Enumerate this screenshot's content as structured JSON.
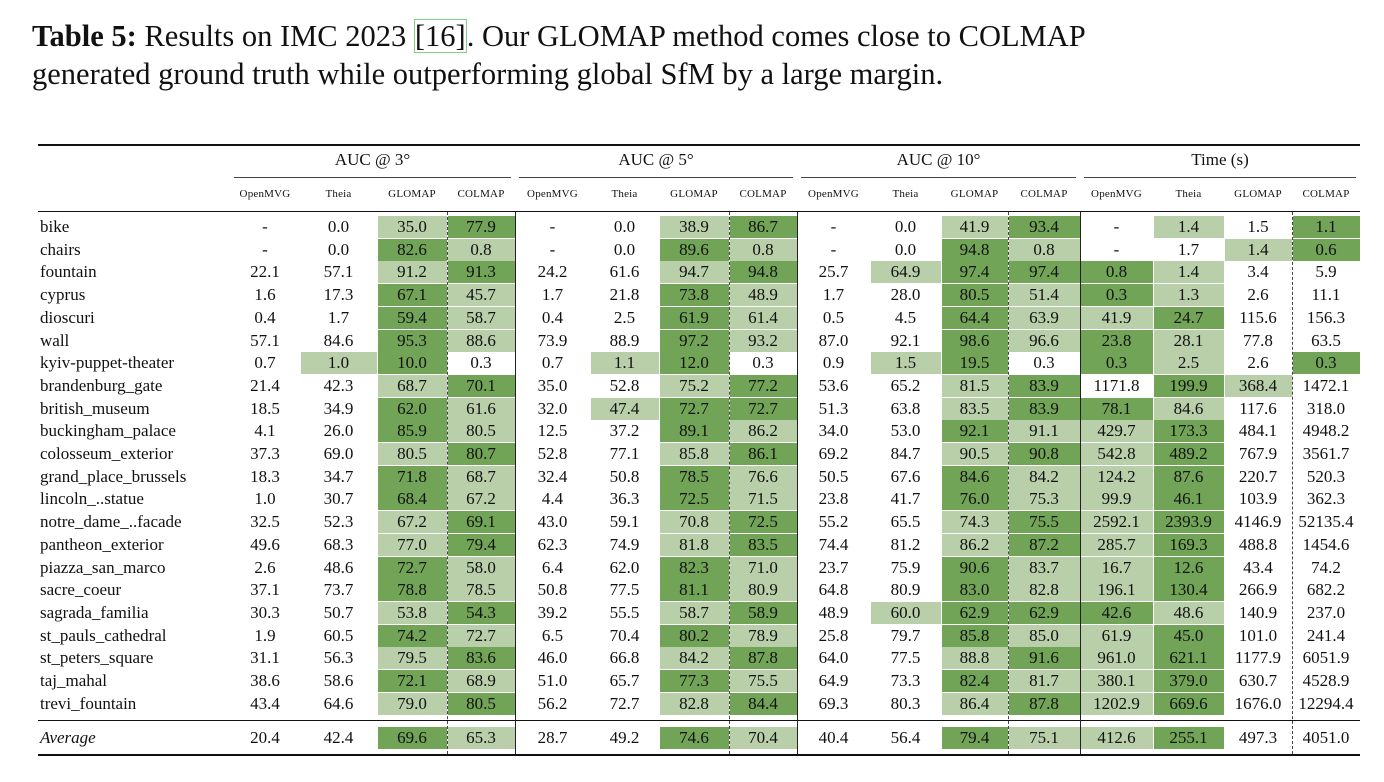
{
  "caption": {
    "label": "Table 5:",
    "line1_before": " Results on IMC 2023 ",
    "cite_open": "[",
    "cite": "16",
    "cite_close": "]",
    "line1_after": ". Our GLOMAP method comes close to COLMAP",
    "line2": "generated ground truth while outperforming global SfM by a large margin."
  },
  "colors": {
    "best": "#72a457",
    "second": "#b9cfaa"
  },
  "highlight_legend": {
    "2": "best",
    "1": "second",
    "0": "none"
  },
  "groups": [
    "AUC @ 3°",
    "AUC @ 5°",
    "AUC @ 10°",
    "Time (s)"
  ],
  "methods": [
    "OpenMVG",
    "Theia",
    "GLOMAP",
    "COLMAP"
  ],
  "rows": [
    {
      "name": "bike",
      "values": [
        "-",
        "0.0",
        "35.0",
        "77.9",
        "-",
        "0.0",
        "38.9",
        "86.7",
        "-",
        "0.0",
        "41.9",
        "93.4",
        "-",
        "1.4",
        "1.5",
        "1.1"
      ],
      "highlight": "0012001200120102"
    },
    {
      "name": "chairs",
      "values": [
        "-",
        "0.0",
        "82.6",
        "0.8",
        "-",
        "0.0",
        "89.6",
        "0.8",
        "-",
        "0.0",
        "94.8",
        "0.8",
        "-",
        "1.7",
        "1.4",
        "0.6"
      ],
      "highlight": "0021002100210012"
    },
    {
      "name": "fountain",
      "values": [
        "22.1",
        "57.1",
        "91.2",
        "91.3",
        "24.2",
        "61.6",
        "94.7",
        "94.8",
        "25.7",
        "64.9",
        "97.4",
        "97.4",
        "0.8",
        "1.4",
        "3.4",
        "5.9"
      ],
      "highlight": "0012001201222100"
    },
    {
      "name": "cyprus",
      "values": [
        "1.6",
        "17.3",
        "67.1",
        "45.7",
        "1.7",
        "21.8",
        "73.8",
        "48.9",
        "1.7",
        "28.0",
        "80.5",
        "51.4",
        "0.3",
        "1.3",
        "2.6",
        "11.1"
      ],
      "highlight": "0021002100212100"
    },
    {
      "name": "dioscuri",
      "values": [
        "0.4",
        "1.7",
        "59.4",
        "58.7",
        "0.4",
        "2.5",
        "61.9",
        "61.4",
        "0.5",
        "4.5",
        "64.4",
        "63.9",
        "41.9",
        "24.7",
        "115.6",
        "156.3"
      ],
      "highlight": "0021002100211200"
    },
    {
      "name": "wall",
      "values": [
        "57.1",
        "84.6",
        "95.3",
        "88.6",
        "73.9",
        "88.9",
        "97.2",
        "93.2",
        "87.0",
        "92.1",
        "98.6",
        "96.6",
        "23.8",
        "28.1",
        "77.8",
        "63.5"
      ],
      "highlight": "0021002100212100"
    },
    {
      "name": "kyiv-puppet-theater",
      "values": [
        "0.7",
        "1.0",
        "10.0",
        "0.3",
        "0.7",
        "1.1",
        "12.0",
        "0.3",
        "0.9",
        "1.5",
        "19.5",
        "0.3",
        "0.3",
        "2.5",
        "2.6",
        "0.3"
      ],
      "highlight": "0120012001202102"
    },
    {
      "name": "brandenburg_gate",
      "values": [
        "21.4",
        "42.3",
        "68.7",
        "70.1",
        "35.0",
        "52.8",
        "75.2",
        "77.2",
        "53.6",
        "65.2",
        "81.5",
        "83.9",
        "1171.8",
        "199.9",
        "368.4",
        "1472.1"
      ],
      "highlight": "0012001200120210"
    },
    {
      "name": "british_museum",
      "values": [
        "18.5",
        "34.9",
        "62.0",
        "61.6",
        "32.0",
        "47.4",
        "72.7",
        "72.7",
        "51.3",
        "63.8",
        "83.5",
        "83.9",
        "78.1",
        "84.6",
        "117.6",
        "318.0"
      ],
      "highlight": "0021012200122100"
    },
    {
      "name": "buckingham_palace",
      "values": [
        "4.1",
        "26.0",
        "85.9",
        "80.5",
        "12.5",
        "37.2",
        "89.1",
        "86.2",
        "34.0",
        "53.0",
        "92.1",
        "91.1",
        "429.7",
        "173.3",
        "484.1",
        "4948.2"
      ],
      "highlight": "0021002100211200"
    },
    {
      "name": "colosseum_exterior",
      "values": [
        "37.3",
        "69.0",
        "80.5",
        "80.7",
        "52.8",
        "77.1",
        "85.8",
        "86.1",
        "69.2",
        "84.7",
        "90.5",
        "90.8",
        "542.8",
        "489.2",
        "767.9",
        "3561.7"
      ],
      "highlight": "0012001200121200"
    },
    {
      "name": "grand_place_brussels",
      "values": [
        "18.3",
        "34.7",
        "71.8",
        "68.7",
        "32.4",
        "50.8",
        "78.5",
        "76.6",
        "50.5",
        "67.6",
        "84.6",
        "84.2",
        "124.2",
        "87.6",
        "220.7",
        "520.3"
      ],
      "highlight": "0021002100211200"
    },
    {
      "name": "lincoln_..statue",
      "values": [
        "1.0",
        "30.7",
        "68.4",
        "67.2",
        "4.4",
        "36.3",
        "72.5",
        "71.5",
        "23.8",
        "41.7",
        "76.0",
        "75.3",
        "99.9",
        "46.1",
        "103.9",
        "362.3"
      ],
      "highlight": "0021002100211200"
    },
    {
      "name": "notre_dame_..facade",
      "values": [
        "32.5",
        "52.3",
        "67.2",
        "69.1",
        "43.0",
        "59.1",
        "70.8",
        "72.5",
        "55.2",
        "65.5",
        "74.3",
        "75.5",
        "2592.1",
        "2393.9",
        "4146.9",
        "52135.4"
      ],
      "highlight": "0012001200121200"
    },
    {
      "name": "pantheon_exterior",
      "values": [
        "49.6",
        "68.3",
        "77.0",
        "79.4",
        "62.3",
        "74.9",
        "81.8",
        "83.5",
        "74.4",
        "81.2",
        "86.2",
        "87.2",
        "285.7",
        "169.3",
        "488.8",
        "1454.6"
      ],
      "highlight": "0012001200121200"
    },
    {
      "name": "piazza_san_marco",
      "values": [
        "2.6",
        "48.6",
        "72.7",
        "58.0",
        "6.4",
        "62.0",
        "82.3",
        "71.0",
        "23.7",
        "75.9",
        "90.6",
        "83.7",
        "16.7",
        "12.6",
        "43.4",
        "74.2"
      ],
      "highlight": "0021002100211200"
    },
    {
      "name": "sacre_coeur",
      "values": [
        "37.1",
        "73.7",
        "78.8",
        "78.5",
        "50.8",
        "77.5",
        "81.1",
        "80.9",
        "64.8",
        "80.9",
        "83.0",
        "82.8",
        "196.1",
        "130.4",
        "266.9",
        "682.2"
      ],
      "highlight": "0021002100211200"
    },
    {
      "name": "sagrada_familia",
      "values": [
        "30.3",
        "50.7",
        "53.8",
        "54.3",
        "39.2",
        "55.5",
        "58.7",
        "58.9",
        "48.9",
        "60.0",
        "62.9",
        "62.9",
        "42.6",
        "48.6",
        "140.9",
        "237.0"
      ],
      "highlight": "0012001201222100"
    },
    {
      "name": "st_pauls_cathedral",
      "values": [
        "1.9",
        "60.5",
        "74.2",
        "72.7",
        "6.5",
        "70.4",
        "80.2",
        "78.9",
        "25.8",
        "79.7",
        "85.8",
        "85.0",
        "61.9",
        "45.0",
        "101.0",
        "241.4"
      ],
      "highlight": "0021002100211200"
    },
    {
      "name": "st_peters_square",
      "values": [
        "31.1",
        "56.3",
        "79.5",
        "83.6",
        "46.0",
        "66.8",
        "84.2",
        "87.8",
        "64.0",
        "77.5",
        "88.8",
        "91.6",
        "961.0",
        "621.1",
        "1177.9",
        "6051.9"
      ],
      "highlight": "0012001200121200"
    },
    {
      "name": "taj_mahal",
      "values": [
        "38.6",
        "58.6",
        "72.1",
        "68.9",
        "51.0",
        "65.7",
        "77.3",
        "75.5",
        "64.9",
        "73.3",
        "82.4",
        "81.7",
        "380.1",
        "379.0",
        "630.7",
        "4528.9"
      ],
      "highlight": "0021002100211200"
    },
    {
      "name": "trevi_fountain",
      "values": [
        "43.4",
        "64.6",
        "79.0",
        "80.5",
        "56.2",
        "72.7",
        "82.8",
        "84.4",
        "69.3",
        "80.3",
        "86.4",
        "87.8",
        "1202.9",
        "669.6",
        "1676.0",
        "12294.4"
      ],
      "highlight": "0012001200121200"
    }
  ],
  "average": {
    "name": "Average",
    "values": [
      "20.4",
      "42.4",
      "69.6",
      "65.3",
      "28.7",
      "49.2",
      "74.6",
      "70.4",
      "40.4",
      "56.4",
      "79.4",
      "75.1",
      "412.6",
      "255.1",
      "497.3",
      "4051.0"
    ],
    "highlight": "0021002100211200"
  }
}
